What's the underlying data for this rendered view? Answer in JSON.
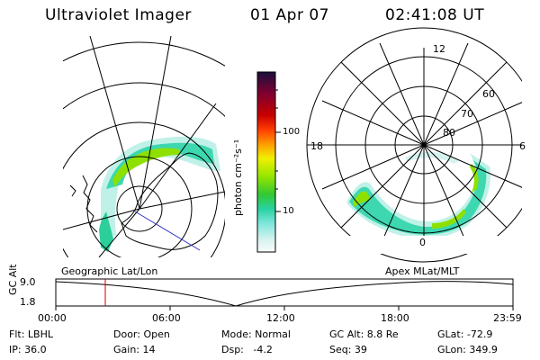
{
  "header": {
    "title": "Ultraviolet Imager",
    "date": "01 Apr 07",
    "time": "02:41:08 UT"
  },
  "colorbar": {
    "label": "photon cm⁻²s⁻¹",
    "ticks": [
      "100",
      "10"
    ],
    "colors": [
      "#1a0f3c",
      "#800030",
      "#c80000",
      "#ff3c00",
      "#ff9b00",
      "#f0f000",
      "#96e600",
      "#32c832",
      "#28d2a0",
      "#7ce6dc",
      "#d6f2ee",
      "#f7fcfb"
    ]
  },
  "polar": {
    "mlt_labels": {
      "top": "12",
      "left": "18",
      "right": "6",
      "bottom": "0"
    },
    "lat_labels": [
      "60",
      "70",
      "80"
    ]
  },
  "altitude_strip": {
    "axis_label": "GC Alt",
    "y_ticks": [
      "9.0",
      "1.8"
    ],
    "left_caption": "Geographic Lat/Lon",
    "right_caption": "Apex MLat/MLT",
    "x_ticks": [
      "00:00",
      "06:00",
      "12:00",
      "18:00",
      "23:59"
    ],
    "marker_color": "#cc0000"
  },
  "info": {
    "row1": {
      "flt": "Flt: LBHL",
      "door": "Door: Open",
      "mode": "Mode: Normal",
      "gc_alt": "GC Alt: 8.8 Re",
      "glat": "GLat: -72.9"
    },
    "row2": {
      "ip": "IP: 36.0",
      "gain": "Gain: 14",
      "dsp": "Dsp:   -4.2",
      "seq": "Seq: 39",
      "glon": "GLon: 349.9"
    }
  }
}
